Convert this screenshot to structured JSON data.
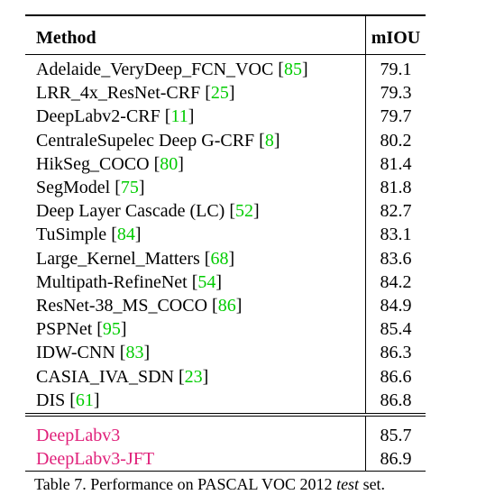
{
  "table": {
    "header": {
      "method": "Method",
      "miou": "mIOU"
    },
    "baseline_rows": [
      {
        "method": "Adelaide_VeryDeep_FCN_VOC",
        "cite": "85",
        "miou": "79.1"
      },
      {
        "method": "LRR_4x_ResNet-CRF",
        "cite": "25",
        "miou": "79.3"
      },
      {
        "method": "DeepLabv2-CRF",
        "cite": "11",
        "miou": "79.7"
      },
      {
        "method": "CentraleSupelec Deep G-CRF",
        "cite": "8",
        "miou": "80.2"
      },
      {
        "method": "HikSeg_COCO",
        "cite": "80",
        "miou": "81.4"
      },
      {
        "method": "SegModel",
        "cite": "75",
        "miou": "81.8"
      },
      {
        "method": "Deep Layer Cascade (LC)",
        "cite": "52",
        "miou": "82.7"
      },
      {
        "method": "TuSimple",
        "cite": "84",
        "miou": "83.1"
      },
      {
        "method": "Large_Kernel_Matters",
        "cite": "68",
        "miou": "83.6"
      },
      {
        "method": "Multipath-RefineNet",
        "cite": "54",
        "miou": "84.2"
      },
      {
        "method": "ResNet-38_MS_COCO",
        "cite": "86",
        "miou": "84.9"
      },
      {
        "method": "PSPNet",
        "cite": "95",
        "miou": "85.4"
      },
      {
        "method": "IDW-CNN",
        "cite": "83",
        "miou": "86.3"
      },
      {
        "method": "CASIA_IVA_SDN",
        "cite": "23",
        "miou": "86.6"
      },
      {
        "method": "DIS",
        "cite": "61",
        "miou": "86.8"
      }
    ],
    "our_rows": [
      {
        "method": "DeepLabv3",
        "miou": "85.7"
      },
      {
        "method": "DeepLabv3-JFT",
        "miou": "86.9"
      }
    ]
  },
  "caption": {
    "prefix": "Table 7. Performance on PASCAL VOC 2012 ",
    "emphasis": "test",
    "suffix": " set."
  },
  "colors": {
    "citation": "#00cc00",
    "ours": "#e0207a"
  }
}
